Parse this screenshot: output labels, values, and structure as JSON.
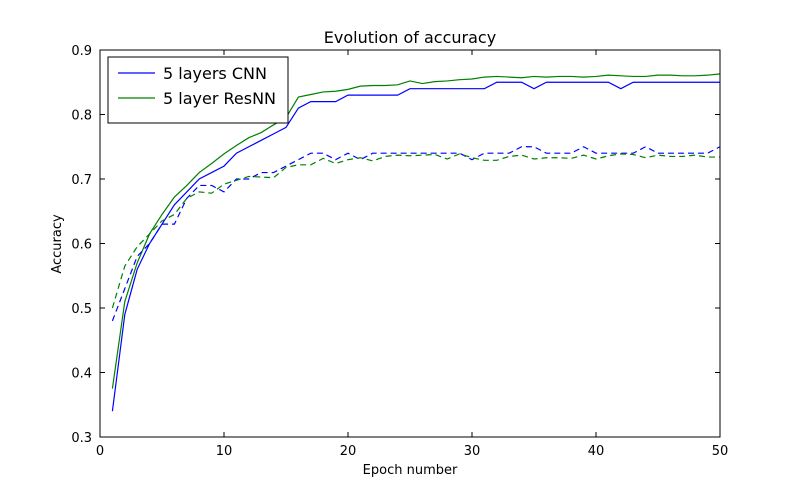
{
  "chart_data": {
    "type": "line",
    "title": "Evolution of accuracy",
    "xlabel": "Epoch number",
    "ylabel": "Accuracy",
    "xlim": [
      0,
      50
    ],
    "ylim": [
      0.3,
      0.9
    ],
    "xticks": [
      0,
      10,
      20,
      30,
      40,
      50
    ],
    "yticks": [
      0.3,
      0.4,
      0.5,
      0.6,
      0.7,
      0.8,
      0.9
    ],
    "grid": false,
    "legend_position": "top-left",
    "series": [
      {
        "name": "5 layers CNN",
        "color": "#0000ff",
        "style": "solid",
        "x": [
          1,
          2,
          3,
          4,
          5,
          6,
          7,
          8,
          9,
          10,
          11,
          12,
          13,
          14,
          15,
          16,
          17,
          18,
          19,
          20,
          21,
          22,
          23,
          24,
          25,
          26,
          27,
          28,
          29,
          30,
          31,
          32,
          33,
          34,
          35,
          36,
          37,
          38,
          39,
          40,
          41,
          42,
          43,
          44,
          45,
          46,
          47,
          48,
          49,
          50
        ],
        "y": [
          0.34,
          0.49,
          0.56,
          0.6,
          0.63,
          0.66,
          0.68,
          0.7,
          0.71,
          0.72,
          0.74,
          0.75,
          0.76,
          0.77,
          0.78,
          0.81,
          0.82,
          0.82,
          0.82,
          0.83,
          0.83,
          0.83,
          0.83,
          0.83,
          0.84,
          0.84,
          0.84,
          0.84,
          0.84,
          0.84,
          0.84,
          0.85,
          0.85,
          0.85,
          0.84,
          0.85,
          0.85,
          0.85,
          0.85,
          0.85,
          0.85,
          0.84,
          0.85,
          0.85,
          0.85,
          0.85,
          0.85,
          0.85,
          0.85,
          0.85
        ]
      },
      {
        "name": "5 layer ResNN",
        "color": "#008000",
        "style": "solid",
        "x": [
          1,
          2,
          3,
          4,
          5,
          6,
          7,
          8,
          9,
          10,
          11,
          12,
          13,
          14,
          15,
          16,
          17,
          18,
          19,
          20,
          21,
          22,
          23,
          24,
          25,
          26,
          27,
          28,
          29,
          30,
          31,
          32,
          33,
          34,
          35,
          36,
          37,
          38,
          39,
          40,
          41,
          42,
          43,
          44,
          45,
          46,
          47,
          48,
          49,
          50
        ],
        "y": [
          0.375,
          0.51,
          0.57,
          0.615,
          0.645,
          0.672,
          0.69,
          0.71,
          0.724,
          0.739,
          0.752,
          0.764,
          0.772,
          0.784,
          0.795,
          0.827,
          0.831,
          0.835,
          0.836,
          0.839,
          0.844,
          0.845,
          0.845,
          0.846,
          0.852,
          0.848,
          0.851,
          0.852,
          0.854,
          0.855,
          0.858,
          0.859,
          0.858,
          0.857,
          0.859,
          0.858,
          0.859,
          0.859,
          0.858,
          0.859,
          0.861,
          0.86,
          0.859,
          0.859,
          0.861,
          0.861,
          0.86,
          0.86,
          0.861,
          0.863
        ]
      },
      {
        "name": "",
        "color": "#0000ff",
        "style": "dashed",
        "x": [
          1,
          2,
          3,
          4,
          5,
          6,
          7,
          8,
          9,
          10,
          11,
          12,
          13,
          14,
          15,
          16,
          17,
          18,
          19,
          20,
          21,
          22,
          23,
          24,
          25,
          26,
          27,
          28,
          29,
          30,
          31,
          32,
          33,
          34,
          35,
          36,
          37,
          38,
          39,
          40,
          41,
          42,
          43,
          44,
          45,
          46,
          47,
          48,
          49,
          50
        ],
        "y": [
          0.48,
          0.53,
          0.58,
          0.6,
          0.63,
          0.63,
          0.67,
          0.69,
          0.69,
          0.68,
          0.7,
          0.7,
          0.71,
          0.71,
          0.72,
          0.73,
          0.74,
          0.74,
          0.73,
          0.74,
          0.73,
          0.74,
          0.74,
          0.74,
          0.74,
          0.74,
          0.74,
          0.74,
          0.74,
          0.73,
          0.74,
          0.74,
          0.74,
          0.75,
          0.75,
          0.74,
          0.74,
          0.74,
          0.75,
          0.74,
          0.74,
          0.74,
          0.74,
          0.75,
          0.74,
          0.74,
          0.74,
          0.74,
          0.74,
          0.75
        ]
      },
      {
        "name": "",
        "color": "#008000",
        "style": "dashed",
        "x": [
          1,
          2,
          3,
          4,
          5,
          6,
          7,
          8,
          9,
          10,
          11,
          12,
          13,
          14,
          15,
          16,
          17,
          18,
          19,
          20,
          21,
          22,
          23,
          24,
          25,
          26,
          27,
          28,
          29,
          30,
          31,
          32,
          33,
          34,
          35,
          36,
          37,
          38,
          39,
          40,
          41,
          42,
          43,
          44,
          45,
          46,
          47,
          48,
          49,
          50
        ],
        "y": [
          0.5,
          0.565,
          0.595,
          0.615,
          0.635,
          0.645,
          0.67,
          0.68,
          0.678,
          0.692,
          0.698,
          0.704,
          0.703,
          0.702,
          0.718,
          0.722,
          0.722,
          0.732,
          0.724,
          0.73,
          0.733,
          0.728,
          0.735,
          0.737,
          0.736,
          0.737,
          0.738,
          0.731,
          0.739,
          0.733,
          0.729,
          0.729,
          0.735,
          0.737,
          0.731,
          0.733,
          0.733,
          0.732,
          0.737,
          0.731,
          0.736,
          0.739,
          0.738,
          0.733,
          0.737,
          0.735,
          0.735,
          0.737,
          0.734,
          0.734
        ]
      }
    ]
  }
}
